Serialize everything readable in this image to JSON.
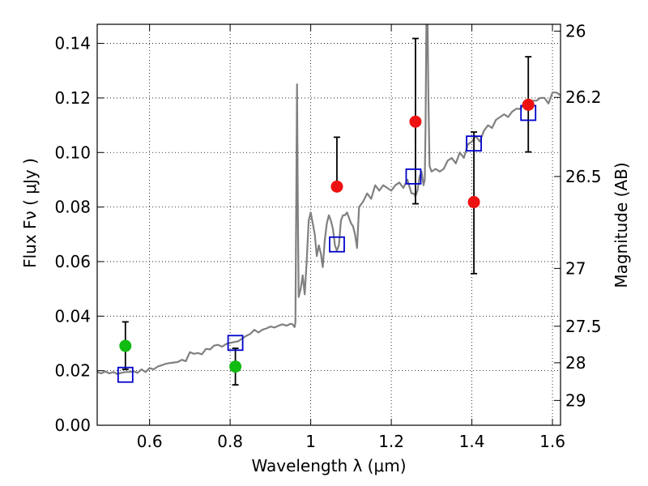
{
  "chart_data": {
    "type": "scatter",
    "title": "",
    "xlabel": "Wavelength  λ (μm)",
    "ylabel": "Flux  Fν ( μJy )",
    "y2label": "Magnitude (AB)",
    "xlim": [
      0.47,
      1.62
    ],
    "ylim": [
      0.0,
      0.147
    ],
    "grid": true,
    "x_ticks": [
      {
        "value": 0.6,
        "label": "0.6"
      },
      {
        "value": 0.8,
        "label": "0.8"
      },
      {
        "value": 1.0,
        "label": "1"
      },
      {
        "value": 1.2,
        "label": "1.2"
      },
      {
        "value": 1.4,
        "label": "1.4"
      },
      {
        "value": 1.6,
        "label": "1.6"
      }
    ],
    "y_ticks": [
      {
        "value": 0.0,
        "label": "0.00"
      },
      {
        "value": 0.02,
        "label": "0.02"
      },
      {
        "value": 0.04,
        "label": "0.04"
      },
      {
        "value": 0.06,
        "label": "0.06"
      },
      {
        "value": 0.08,
        "label": "0.08"
      },
      {
        "value": 0.1,
        "label": "0.10"
      },
      {
        "value": 0.12,
        "label": "0.12"
      },
      {
        "value": 0.14,
        "label": "0.14"
      }
    ],
    "y2_ticks": [
      {
        "flux": 0.1445,
        "label": "26"
      },
      {
        "flux": 0.1202,
        "label": "26.2"
      },
      {
        "flux": 0.0912,
        "label": "26.5"
      },
      {
        "flux": 0.0575,
        "label": "27"
      },
      {
        "flux": 0.0363,
        "label": "27.5"
      },
      {
        "flux": 0.0229,
        "label": "28"
      },
      {
        "flux": 0.0091,
        "label": "29"
      }
    ],
    "series": [
      {
        "kind": "spectrum",
        "color": "#808080",
        "x": [
          0.47,
          0.48,
          0.49,
          0.5,
          0.51,
          0.52,
          0.53,
          0.54,
          0.55,
          0.56,
          0.57,
          0.58,
          0.59,
          0.6,
          0.61,
          0.62,
          0.63,
          0.64,
          0.65,
          0.66,
          0.67,
          0.68,
          0.69,
          0.7,
          0.71,
          0.72,
          0.73,
          0.74,
          0.75,
          0.76,
          0.77,
          0.78,
          0.79,
          0.8,
          0.81,
          0.82,
          0.83,
          0.84,
          0.85,
          0.86,
          0.87,
          0.88,
          0.89,
          0.9,
          0.91,
          0.92,
          0.93,
          0.94,
          0.95,
          0.955,
          0.96,
          0.962,
          0.964,
          0.966,
          0.968,
          0.97,
          0.975,
          0.98,
          0.985,
          0.99,
          0.995,
          1.0,
          1.005,
          1.01,
          1.015,
          1.02,
          1.025,
          1.03,
          1.035,
          1.04,
          1.045,
          1.05,
          1.055,
          1.06,
          1.065,
          1.07,
          1.075,
          1.08,
          1.085,
          1.09,
          1.1,
          1.105,
          1.11,
          1.115,
          1.12,
          1.13,
          1.14,
          1.15,
          1.16,
          1.17,
          1.18,
          1.19,
          1.2,
          1.21,
          1.22,
          1.23,
          1.24,
          1.25,
          1.255,
          1.26,
          1.265,
          1.27,
          1.275,
          1.28,
          1.283,
          1.285,
          1.287,
          1.29,
          1.292,
          1.295,
          1.3,
          1.31,
          1.32,
          1.33,
          1.34,
          1.35,
          1.36,
          1.37,
          1.38,
          1.39,
          1.4,
          1.41,
          1.42,
          1.43,
          1.44,
          1.45,
          1.46,
          1.47,
          1.48,
          1.49,
          1.5,
          1.51,
          1.52,
          1.53,
          1.54,
          1.55,
          1.56,
          1.57,
          1.58,
          1.59,
          1.6,
          1.61,
          1.62
        ],
        "y": [
          0.0195,
          0.019,
          0.0198,
          0.019,
          0.0195,
          0.0188,
          0.0192,
          0.0195,
          0.0195,
          0.0198,
          0.0192,
          0.0205,
          0.0195,
          0.021,
          0.0205,
          0.0215,
          0.022,
          0.0225,
          0.0228,
          0.023,
          0.0232,
          0.024,
          0.0235,
          0.0268,
          0.0262,
          0.0265,
          0.026,
          0.028,
          0.0278,
          0.0292,
          0.0295,
          0.0288,
          0.0298,
          0.0302,
          0.0305,
          0.0308,
          0.0318,
          0.0328,
          0.0335,
          0.035,
          0.034,
          0.035,
          0.0355,
          0.0362,
          0.0358,
          0.0365,
          0.037,
          0.0365,
          0.0372,
          0.037,
          0.036,
          0.0375,
          0.08,
          0.125,
          0.08,
          0.047,
          0.05,
          0.055,
          0.048,
          0.06,
          0.075,
          0.078,
          0.074,
          0.07,
          0.062,
          0.066,
          0.063,
          0.058,
          0.068,
          0.074,
          0.077,
          0.075,
          0.072,
          0.066,
          0.064,
          0.066,
          0.075,
          0.077,
          0.077,
          0.078,
          0.074,
          0.073,
          0.07,
          0.065,
          0.08,
          0.082,
          0.085,
          0.083,
          0.088,
          0.086,
          0.088,
          0.087,
          0.086,
          0.088,
          0.089,
          0.087,
          0.09,
          0.085,
          0.085,
          0.084,
          0.086,
          0.091,
          0.093,
          0.088,
          0.09,
          0.11,
          0.147,
          0.147,
          0.12,
          0.095,
          0.093,
          0.094,
          0.093,
          0.094,
          0.097,
          0.098,
          0.096,
          0.1,
          0.098,
          0.103,
          0.104,
          0.106,
          0.104,
          0.108,
          0.11,
          0.109,
          0.112,
          0.113,
          0.114,
          0.113,
          0.115,
          0.116,
          0.116,
          0.118,
          0.117,
          0.119,
          0.119,
          0.12,
          0.12,
          0.118,
          0.122,
          0.122,
          0.121
        ]
      },
      {
        "kind": "model",
        "name": "",
        "color": "#0000cc",
        "marker": "open-square",
        "x": [
          0.54,
          0.813,
          1.065,
          1.255,
          1.405,
          1.54
        ],
        "y": [
          0.0185,
          0.0302,
          0.0663,
          0.0912,
          0.1033,
          0.1145
        ]
      },
      {
        "kind": "detection",
        "name": "",
        "color": "#ee1111",
        "marker": "filled-circle",
        "x": [
          1.065,
          1.26,
          1.405,
          1.54
        ],
        "y": [
          0.0875,
          0.1113,
          0.0818,
          0.1175
        ],
        "err_low": [
          0.0875,
          0.0812,
          0.0556,
          0.1002
        ],
        "err_high": [
          0.1056,
          0.1418,
          0.1075,
          0.1351
        ]
      },
      {
        "kind": "weak",
        "name": "",
        "color": "#11bb11",
        "marker": "filled-circle",
        "x": [
          0.54,
          0.813
        ],
        "y": [
          0.0291,
          0.0215
        ],
        "err_low": [
          0.0205,
          0.0148
        ],
        "err_high": [
          0.0379,
          0.0282
        ]
      }
    ]
  }
}
